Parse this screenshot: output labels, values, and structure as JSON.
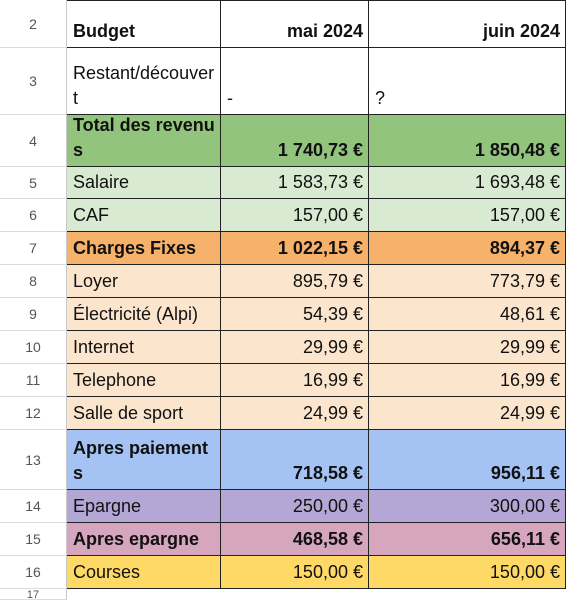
{
  "rows": [
    {
      "number": "2",
      "cells": [
        "Budget",
        "mai 2024",
        "juin 2024"
      ]
    },
    {
      "number": "3",
      "cells": [
        "Restant/découvert",
        "-",
        "?"
      ]
    },
    {
      "number": "4",
      "cells": [
        "Total des revenus",
        "1 740,73 €",
        "1 850,48 €"
      ]
    },
    {
      "number": "5",
      "cells": [
        "Salaire",
        "1 583,73 €",
        "1 693,48 €"
      ]
    },
    {
      "number": "6",
      "cells": [
        "CAF",
        "157,00 €",
        "157,00 €"
      ]
    },
    {
      "number": "7",
      "cells": [
        "Charges Fixes",
        "1 022,15 €",
        "894,37 €"
      ]
    },
    {
      "number": "8",
      "cells": [
        "Loyer",
        "895,79 €",
        "773,79 €"
      ]
    },
    {
      "number": "9",
      "cells": [
        "Électricité (Alpi)",
        "54,39 €",
        "48,61 €"
      ]
    },
    {
      "number": "10",
      "cells": [
        "Internet",
        "29,99 €",
        "29,99 €"
      ]
    },
    {
      "number": "11",
      "cells": [
        "Telephone",
        "16,99 €",
        "16,99 €"
      ]
    },
    {
      "number": "12",
      "cells": [
        "Salle de sport",
        "24,99 €",
        "24,99 €"
      ]
    },
    {
      "number": "13",
      "cells": [
        "Apres paiements",
        "718,58 €",
        "956,11 €"
      ]
    },
    {
      "number": "14",
      "cells": [
        "Epargne",
        "250,00 €",
        "300,00 €"
      ]
    },
    {
      "number": "15",
      "cells": [
        "Apres epargne",
        "468,58 €",
        "656,11 €"
      ]
    },
    {
      "number": "16",
      "cells": [
        "Courses",
        "150,00 €",
        "150,00 €"
      ]
    }
  ],
  "next_row": "17"
}
